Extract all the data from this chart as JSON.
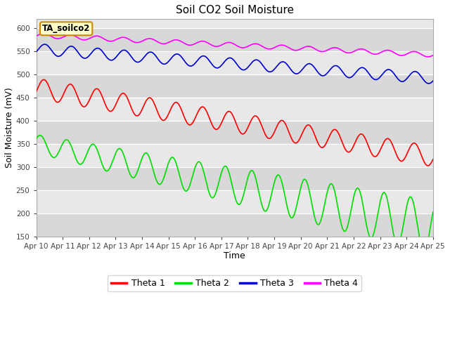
{
  "title": "Soil CO2 Soil Moisture",
  "xlabel": "Time",
  "ylabel": "Soil Moisture (mV)",
  "ylim": [
    150,
    620
  ],
  "yticks": [
    150,
    200,
    250,
    300,
    350,
    400,
    450,
    500,
    550,
    600
  ],
  "annotation": "TA_soilco2",
  "fig_bg": "#f0f0f0",
  "plot_bg": "#e8e8e8",
  "stripe_colors": [
    "#e0e0e0",
    "#ebebeb"
  ],
  "colors": {
    "theta1": "#ff0000",
    "theta2": "#00dd00",
    "theta3": "#0000cc",
    "theta4": "#ff00ff"
  },
  "legend_labels": [
    "Theta 1",
    "Theta 2",
    "Theta 3",
    "Theta 4"
  ],
  "x_tick_labels": [
    "Apr 10",
    "Apr 11",
    "Apr 12",
    "Apr 13",
    "Apr 14",
    "Apr 15",
    "Apr 16",
    "Apr 17",
    "Apr 18",
    "Apr 19",
    "Apr 20",
    "Apr 21",
    "Apr 22",
    "Apr 23",
    "Apr 24",
    "Apr 25"
  ],
  "n_points": 2000
}
